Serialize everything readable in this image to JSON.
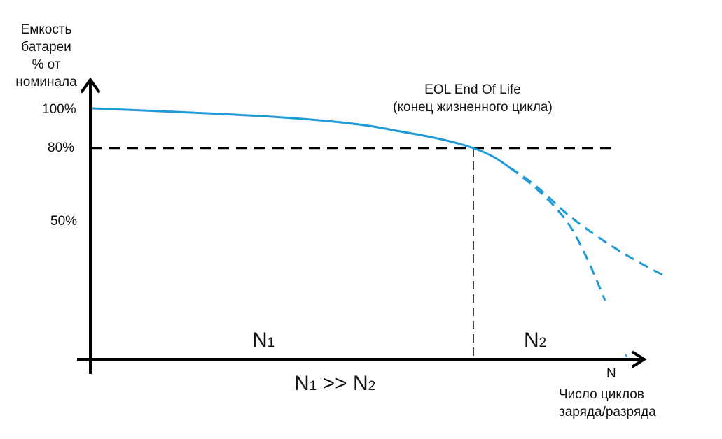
{
  "y_axis": {
    "title_lines": [
      "Емкость",
      "батареи",
      "% от",
      "номинала"
    ],
    "ticks": [
      "100%",
      "80%",
      "50%"
    ]
  },
  "x_axis": {
    "end_label": "N",
    "title_lines": [
      "Число циклов",
      "заряда/разряда"
    ]
  },
  "eol": {
    "line1": "EOL End Of Life",
    "line2": "(конец жизненного цикла)"
  },
  "regions": {
    "n1": {
      "letter": "N",
      "sub": "1"
    },
    "n2": {
      "letter": "N",
      "sub": "2"
    }
  },
  "relation": {
    "left": "N",
    "left_sub": "1",
    "op": ">>",
    "right": "N",
    "right_sub": "2"
  },
  "colors": {
    "curve": "#1e9ad6",
    "axis": "#000000"
  }
}
